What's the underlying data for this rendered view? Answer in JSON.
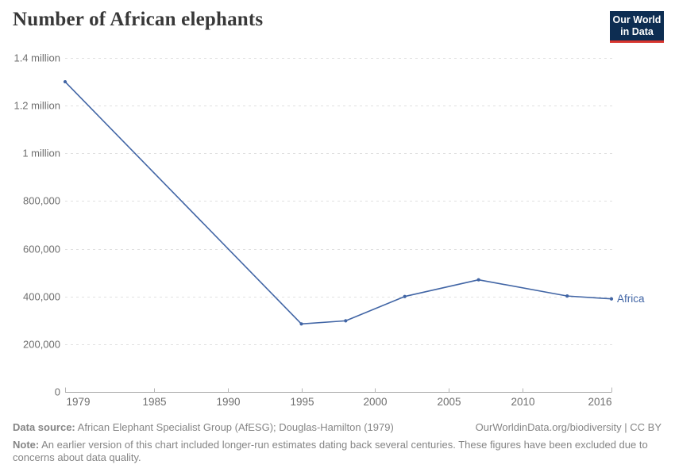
{
  "header": {
    "title": "Number of African elephants",
    "logo": {
      "line1": "Our World",
      "line2": "in Data"
    }
  },
  "chart_data": {
    "type": "line",
    "title": "Number of African elephants",
    "xlabel": "",
    "ylabel": "",
    "xlim": [
      1979,
      2016
    ],
    "ylim": [
      0,
      1400000
    ],
    "grid": "horizontal-dashed",
    "legend": "inline-end-label",
    "x_ticks": [
      {
        "value": 1979,
        "label": "1979"
      },
      {
        "value": 1985,
        "label": "1985"
      },
      {
        "value": 1990,
        "label": "1990"
      },
      {
        "value": 1995,
        "label": "1995"
      },
      {
        "value": 2000,
        "label": "2000"
      },
      {
        "value": 2005,
        "label": "2005"
      },
      {
        "value": 2010,
        "label": "2010"
      },
      {
        "value": 2016,
        "label": "2016"
      }
    ],
    "y_ticks": [
      {
        "value": 0,
        "label": "0"
      },
      {
        "value": 200000,
        "label": "200,000"
      },
      {
        "value": 400000,
        "label": "400,000"
      },
      {
        "value": 600000,
        "label": "600,000"
      },
      {
        "value": 800000,
        "label": "800,000"
      },
      {
        "value": 1000000,
        "label": "1 million"
      },
      {
        "value": 1200000,
        "label": "1.2 million"
      },
      {
        "value": 1400000,
        "label": "1.4 million"
      }
    ],
    "series": [
      {
        "name": "Africa",
        "color": "#4165a5",
        "points": [
          [
            1979,
            1300000
          ],
          [
            1995,
            285000
          ],
          [
            1998,
            298000
          ],
          [
            2002,
            400000
          ],
          [
            2007,
            470000
          ],
          [
            2013,
            402000
          ],
          [
            2016,
            390000
          ]
        ]
      }
    ]
  },
  "footer": {
    "datasource_label": "Data source:",
    "datasource_text": " African Elephant Specialist Group (AfESG); Douglas-Hamilton (1979)",
    "attribution": "OurWorldinData.org/biodiversity | CC BY",
    "note_label": "Note:",
    "note_text": " An earlier version of this chart included longer-run estimates dating back several centuries. These figures have been excluded due to concerns about data quality."
  },
  "colors": {
    "series_line": "#4165a5",
    "grid_line": "#e0e0e0",
    "axis_line": "#a8a8a8",
    "tick_mark": "#b5b5b5",
    "tick_label": "#6e6e6e",
    "title_text": "#383838",
    "footer_text": "#858585",
    "logo_background": "#0d2d52",
    "logo_underline": "#d8352e"
  }
}
